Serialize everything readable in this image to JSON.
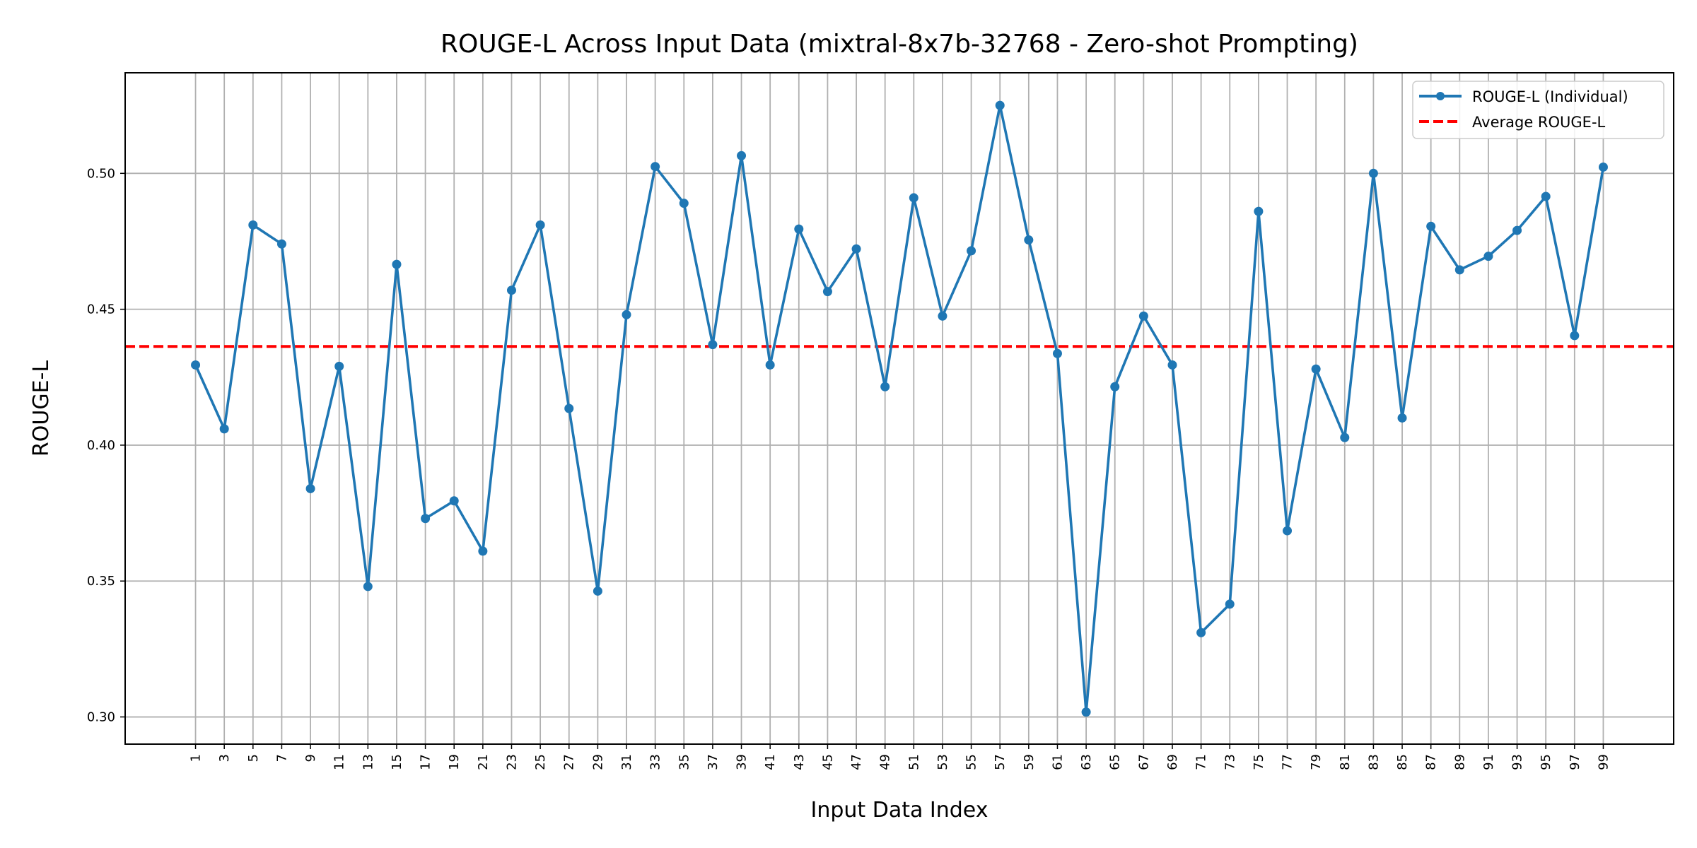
{
  "chart_data": {
    "type": "line",
    "title": "ROUGE-L Across Input Data (mixtral-8x7b-32768 - Zero-shot Prompting)",
    "xlabel": "Input Data Index",
    "ylabel": "ROUGE-L",
    "x": [
      1,
      3,
      5,
      7,
      9,
      11,
      13,
      15,
      17,
      19,
      21,
      23,
      25,
      27,
      29,
      31,
      33,
      35,
      37,
      39,
      41,
      43,
      45,
      47,
      49,
      51,
      53,
      55,
      57,
      59,
      61,
      63,
      65,
      67,
      69,
      71,
      73,
      75,
      77,
      79,
      81,
      83,
      85,
      87,
      89,
      91,
      93,
      95,
      97,
      99
    ],
    "xticks": [
      "1",
      "3",
      "5",
      "7",
      "9",
      "11",
      "13",
      "15",
      "17",
      "19",
      "21",
      "23",
      "25",
      "27",
      "29",
      "31",
      "33",
      "35",
      "37",
      "39",
      "41",
      "43",
      "45",
      "47",
      "49",
      "51",
      "53",
      "55",
      "57",
      "59",
      "61",
      "63",
      "65",
      "67",
      "69",
      "71",
      "73",
      "75",
      "77",
      "79",
      "81",
      "83",
      "85",
      "87",
      "89",
      "91",
      "93",
      "95",
      "97",
      "99"
    ],
    "xlim": [
      -3.9,
      103.9
    ],
    "ylim": [
      0.29,
      0.537
    ],
    "yticks": [
      "0.30",
      "0.35",
      "0.40",
      "0.45",
      "0.50"
    ],
    "ytick_values": [
      0.3,
      0.35,
      0.4,
      0.45,
      0.5
    ],
    "grid": true,
    "legend_position": "top-right",
    "series": [
      {
        "name": "ROUGE-L (Individual)",
        "color": "#1f77b4",
        "style": "solid-marker",
        "values": [
          0.4295,
          0.406,
          0.481,
          0.474,
          0.384,
          0.429,
          0.348,
          0.4665,
          0.373,
          0.3795,
          0.361,
          0.457,
          0.481,
          0.4135,
          0.3463,
          0.448,
          0.5025,
          0.489,
          0.437,
          0.5065,
          0.4295,
          0.4795,
          0.4565,
          0.4722,
          0.4215,
          0.491,
          0.4475,
          0.4715,
          0.525,
          0.4755,
          0.4337,
          0.3018,
          0.4215,
          0.4475,
          0.4295,
          0.331,
          0.3415,
          0.486,
          0.3685,
          0.428,
          0.4028,
          0.5,
          0.41,
          0.4805,
          0.4645,
          0.4695,
          0.479,
          0.4915,
          0.4403,
          0.5023
        ]
      },
      {
        "name": "Average ROUGE-L",
        "color": "#ff0000",
        "style": "dashed",
        "constant": 0.4363
      }
    ]
  }
}
